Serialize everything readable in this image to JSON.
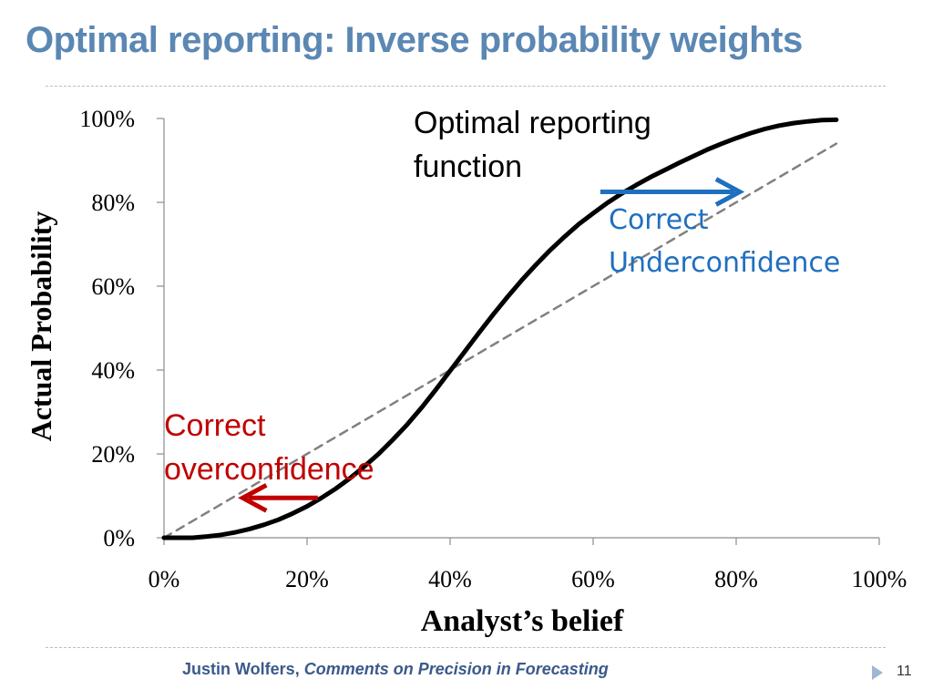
{
  "slide": {
    "title": "Optimal reporting: Inverse probability weights",
    "footer_author": "Justin Wolfers,",
    "footer_work": "Comments on Precision in Forecasting",
    "page_number": "11"
  },
  "chart_data": {
    "type": "line",
    "xlabel": "Analyst’s belief",
    "ylabel": "Actual Probability",
    "xlim": [
      0,
      100
    ],
    "ylim": [
      0,
      100
    ],
    "x_ticks": [
      "0%",
      "20%",
      "40%",
      "60%",
      "80%",
      "100%"
    ],
    "y_ticks": [
      "0%",
      "20%",
      "40%",
      "60%",
      "80%",
      "100%"
    ],
    "series": [
      {
        "name": "Optimal reporting function",
        "style": "solid",
        "color": "#000000",
        "x": [
          0,
          2,
          4,
          6,
          8,
          10,
          12,
          14,
          16,
          18,
          20,
          22,
          24,
          26,
          28,
          30,
          32,
          34,
          36,
          38,
          40,
          42,
          44,
          46,
          48,
          50,
          52,
          54,
          56,
          58,
          60,
          62,
          64,
          66,
          68,
          70,
          72,
          74,
          76,
          78,
          80,
          82,
          84,
          86,
          88,
          90,
          92,
          94
        ],
        "y": [
          0,
          0,
          0,
          0.3,
          0.7,
          1.3,
          2.1,
          3.1,
          4.3,
          5.8,
          7.5,
          9.5,
          11.7,
          14.2,
          17.0,
          20.0,
          23.4,
          27.0,
          31.0,
          35.3,
          39.8,
          44.3,
          48.8,
          53.2,
          57.4,
          61.4,
          65.1,
          68.6,
          71.8,
          74.8,
          77.4,
          79.9,
          82.1,
          84.1,
          86.0,
          87.7,
          89.4,
          91.0,
          92.6,
          94.0,
          95.3,
          96.5,
          97.5,
          98.3,
          98.9,
          99.3,
          99.6,
          99.7
        ]
      },
      {
        "name": "45-degree line",
        "style": "dashed",
        "color": "#808080",
        "x": [
          0,
          94
        ],
        "y": [
          0,
          94
        ]
      }
    ],
    "annotations": [
      {
        "id": "optimal",
        "lines": [
          "Optimal reporting",
          "function"
        ],
        "color": "#000000"
      },
      {
        "id": "under",
        "lines": [
          "Correct",
          "Underconfidence"
        ],
        "color": "#1f6fbf",
        "arrow": {
          "from": [
            61,
            82.5
          ],
          "to": [
            80.5,
            82.5
          ],
          "direction": "right"
        }
      },
      {
        "id": "over",
        "lines": [
          "Correct",
          "overconfidence"
        ],
        "color": "#c00000",
        "arrow": {
          "from": [
            21.5,
            9.5
          ],
          "to": [
            11,
            9.5
          ],
          "direction": "left"
        }
      }
    ]
  }
}
